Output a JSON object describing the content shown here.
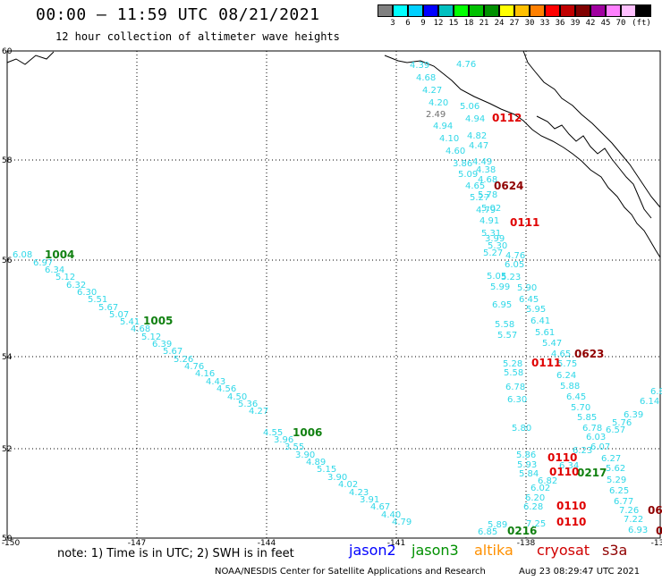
{
  "title": "00:00 – 11:59 UTC 08/21/2021",
  "subtitle": "12 hour collection of altimeter wave heights",
  "legend": {
    "colors": [
      "#808080",
      "#00ffff",
      "#00d0ff",
      "#0000ff",
      "#00c0c0",
      "#00ff00",
      "#00c000",
      "#009000",
      "#ffff00",
      "#ffc000",
      "#ff8000",
      "#ff0000",
      "#c00000",
      "#800000",
      "#a000a0",
      "#ff80ff",
      "#ffc0ff",
      "#000000"
    ],
    "labels": [
      "3",
      "6",
      "9",
      "12",
      "15",
      "18",
      "21",
      "24",
      "27",
      "30",
      "33",
      "36",
      "39",
      "42",
      "45",
      "70",
      "(ft)"
    ],
    "unit": "(ft)"
  },
  "axes": {
    "lat_ticks": [
      "60",
      "58",
      "56",
      "54",
      "52",
      "50"
    ],
    "lon_ticks": [
      "-150",
      "-147",
      "-144",
      "-141",
      "-138",
      "-13"
    ]
  },
  "labels_cyan": [
    [
      "6.08",
      14,
      288
    ],
    [
      "6.97",
      37,
      297
    ],
    [
      "6.34",
      50,
      305
    ],
    [
      "5.12",
      62,
      313
    ],
    [
      "6.32",
      74,
      322
    ],
    [
      "6.30",
      86,
      330
    ],
    [
      "5.51",
      98,
      338
    ],
    [
      "5.67",
      110,
      347
    ],
    [
      "5.07",
      122,
      355
    ],
    [
      "5.41",
      134,
      363
    ],
    [
      "4.68",
      146,
      371
    ],
    [
      "5.12",
      158,
      380
    ],
    [
      "6.39",
      170,
      388
    ],
    [
      "5.67",
      182,
      396
    ],
    [
      "5.26",
      194,
      405
    ],
    [
      "4.76",
      206,
      413
    ],
    [
      "4.16",
      218,
      421
    ],
    [
      "4.43",
      230,
      430
    ],
    [
      "4.56",
      242,
      438
    ],
    [
      "4.50",
      254,
      447
    ],
    [
      "5.36",
      266,
      455
    ],
    [
      "4.27",
      278,
      463
    ],
    [
      "4.55",
      294,
      487
    ],
    [
      "3.96",
      306,
      495
    ],
    [
      "3.55",
      318,
      503
    ],
    [
      "3.90",
      330,
      512
    ],
    [
      "4.89",
      342,
      520
    ],
    [
      "5.15",
      354,
      528
    ],
    [
      "3.90",
      366,
      537
    ],
    [
      "4.02",
      378,
      545
    ],
    [
      "4.23",
      390,
      554
    ],
    [
      "3.91",
      402,
      562
    ],
    [
      "4.67",
      414,
      570
    ],
    [
      "4.40",
      426,
      579
    ],
    [
      "4.79",
      438,
      587
    ],
    [
      "4.39",
      458,
      76
    ],
    [
      "4.68",
      465,
      90
    ],
    [
      "4.27",
      472,
      104
    ],
    [
      "4.20",
      479,
      118
    ],
    [
      "4.94",
      484,
      144
    ],
    [
      "4.10",
      491,
      158
    ],
    [
      "4.60",
      498,
      172
    ],
    [
      "3.86",
      506,
      186
    ],
    [
      "5.09",
      512,
      198
    ],
    [
      "4.65",
      520,
      211
    ],
    [
      "5.27",
      525,
      224
    ],
    [
      "4.79",
      532,
      238
    ],
    [
      "5.06",
      514,
      122
    ],
    [
      "4.94",
      520,
      136
    ],
    [
      "4.82",
      522,
      155
    ],
    [
      "4.47",
      524,
      166
    ],
    [
      "4.49",
      528,
      184
    ],
    [
      "4.38",
      532,
      193
    ],
    [
      "4.68",
      534,
      204
    ],
    [
      "5.78",
      534,
      221
    ],
    [
      "5.02",
      538,
      236
    ],
    [
      "4.91",
      536,
      250
    ],
    [
      "5.31",
      538,
      264
    ],
    [
      "5.30",
      545,
      278
    ],
    [
      "5.27",
      540,
      286
    ],
    [
      "6.05",
      564,
      299
    ],
    [
      "5.05",
      544,
      312
    ],
    [
      "5.23",
      560,
      313
    ],
    [
      "5.99",
      548,
      324
    ],
    [
      "5.90",
      578,
      325
    ],
    [
      "6.45",
      580,
      338
    ],
    [
      "5.95",
      588,
      349
    ],
    [
      "6.41",
      593,
      362
    ],
    [
      "5.61",
      598,
      375
    ],
    [
      "5.47",
      606,
      387
    ],
    [
      "4.65",
      616,
      399
    ],
    [
      "5.75",
      623,
      410
    ],
    [
      "6.24",
      622,
      423
    ],
    [
      "5.88",
      626,
      435
    ],
    [
      "6.45",
      633,
      447
    ],
    [
      "5.70",
      638,
      459
    ],
    [
      "5.85",
      645,
      470
    ],
    [
      "6.78",
      651,
      482
    ],
    [
      "6.03",
      655,
      492
    ],
    [
      "6.07",
      660,
      503
    ],
    [
      "5.62",
      677,
      527
    ],
    [
      "5.29",
      678,
      540
    ],
    [
      "6.25",
      681,
      552
    ],
    [
      "6.77",
      686,
      564
    ],
    [
      "7.26",
      692,
      574
    ],
    [
      "7.22",
      697,
      584
    ],
    [
      "6.93",
      702,
      596
    ],
    [
      "6.95",
      550,
      344
    ],
    [
      "5.58",
      553,
      366
    ],
    [
      "5.57",
      556,
      378
    ],
    [
      "5.28",
      562,
      410
    ],
    [
      "5.58",
      563,
      420
    ],
    [
      "6.78",
      565,
      436
    ],
    [
      "6.30",
      567,
      450
    ],
    [
      "5.80",
      572,
      482
    ],
    [
      "5.86",
      577,
      512
    ],
    [
      "5.93",
      578,
      523
    ],
    [
      "5.84",
      580,
      533
    ],
    [
      "6.02",
      593,
      549
    ],
    [
      "6.20",
      587,
      560
    ],
    [
      "6.28",
      585,
      570
    ],
    [
      "6.85",
      534,
      598
    ],
    [
      "5.89",
      545,
      590
    ],
    [
      "7.25",
      588,
      589
    ],
    [
      "6.34",
      625,
      524
    ],
    [
      "6.82",
      601,
      541
    ],
    [
      "6.23",
      640,
      507
    ],
    [
      "6.27",
      672,
      516
    ],
    [
      "6.39",
      697,
      467
    ],
    [
      "5.76",
      684,
      476
    ],
    [
      "6.57",
      677,
      484
    ],
    [
      "6.14",
      715,
      452
    ],
    [
      "6.8",
      727,
      441
    ],
    [
      "4.76",
      510,
      75
    ],
    [
      "3.99",
      542,
      270
    ],
    [
      "4.76",
      565,
      289
    ]
  ],
  "labels_gray": [
    [
      "2.49",
      476,
      131
    ]
  ],
  "labels_green": [
    [
      "1004",
      50,
      289
    ],
    [
      "1005",
      160,
      363
    ],
    [
      "1006",
      327,
      488
    ],
    [
      "0216",
      567,
      598
    ],
    [
      "0217",
      645,
      533
    ]
  ],
  "labels_red": [
    [
      "0112",
      550,
      136
    ],
    [
      "0111",
      570,
      253
    ],
    [
      "0111",
      594,
      410
    ],
    [
      "0110",
      612,
      516
    ],
    [
      "0110",
      614,
      532
    ],
    [
      "0110",
      622,
      570
    ],
    [
      "0110",
      622,
      588
    ]
  ],
  "labels_darkred": [
    [
      "0624",
      552,
      212
    ],
    [
      "0623",
      642,
      400
    ],
    [
      "06",
      724,
      575
    ],
    [
      "0",
      733,
      598
    ]
  ],
  "note": "note: 1) Time is in UTC; 2) SWH is in feet",
  "satellites": [
    {
      "name": "jason2",
      "color": "#0000ff"
    },
    {
      "name": "jason3",
      "color": "#009000"
    },
    {
      "name": "altika",
      "color": "#ff9000"
    },
    {
      "name": "cryosat",
      "color": "#d00000"
    },
    {
      "name": "s3a",
      "color": "#900000"
    }
  ],
  "footer": "NOAA/NESDIS Center for Satellite Applications and Research",
  "footer_time": "Aug 23 08:29:47 UTC 2021"
}
